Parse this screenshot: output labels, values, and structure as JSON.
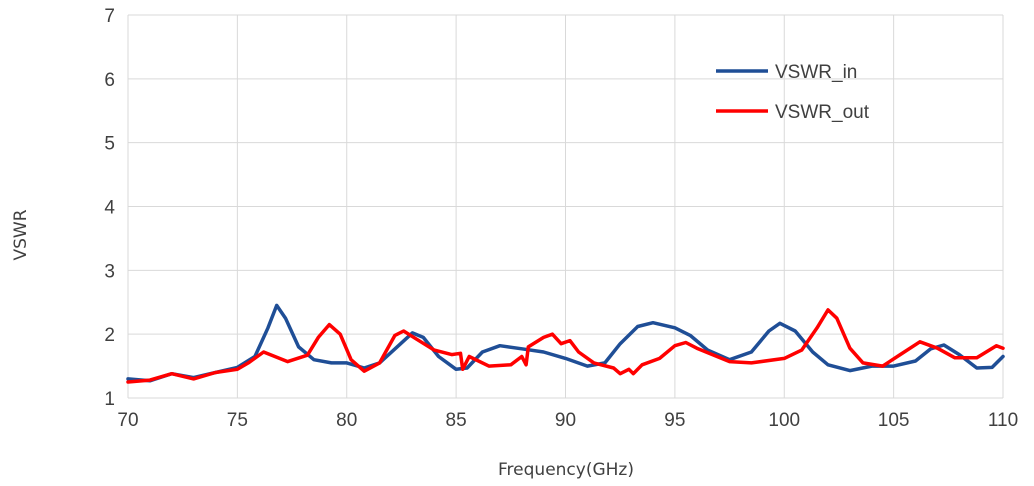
{
  "chart_data": {
    "type": "line",
    "title": "",
    "xlabel": "Frequency(GHz)",
    "ylabel": "VSWR",
    "xlim": [
      70,
      110
    ],
    "ylim": [
      1,
      7
    ],
    "x_ticks": [
      "70",
      "75",
      "80",
      "85",
      "90",
      "95",
      "100",
      "105",
      "110"
    ],
    "y_ticks": [
      "1",
      "2",
      "3",
      "4",
      "5",
      "6",
      "7"
    ],
    "grid": true,
    "legend_position": "top-right",
    "series": [
      {
        "name": "VSWR_in",
        "color": "#1f4e96",
        "points": [
          [
            70,
            1.3
          ],
          [
            71,
            1.27
          ],
          [
            72,
            1.38
          ],
          [
            73,
            1.32
          ],
          [
            74,
            1.4
          ],
          [
            75,
            1.48
          ],
          [
            75.8,
            1.65
          ],
          [
            76.4,
            2.1
          ],
          [
            76.8,
            2.45
          ],
          [
            77.2,
            2.25
          ],
          [
            77.8,
            1.8
          ],
          [
            78.5,
            1.6
          ],
          [
            79.3,
            1.55
          ],
          [
            80,
            1.55
          ],
          [
            80.8,
            1.47
          ],
          [
            81.5,
            1.55
          ],
          [
            82.3,
            1.8
          ],
          [
            83,
            2.02
          ],
          [
            83.5,
            1.95
          ],
          [
            84.2,
            1.65
          ],
          [
            85,
            1.45
          ],
          [
            85.5,
            1.47
          ],
          [
            86.2,
            1.72
          ],
          [
            87,
            1.82
          ],
          [
            88,
            1.77
          ],
          [
            89,
            1.72
          ],
          [
            90,
            1.62
          ],
          [
            91,
            1.5
          ],
          [
            91.8,
            1.55
          ],
          [
            92.5,
            1.85
          ],
          [
            93.3,
            2.12
          ],
          [
            94,
            2.18
          ],
          [
            95,
            2.1
          ],
          [
            95.7,
            1.98
          ],
          [
            96.5,
            1.75
          ],
          [
            97.5,
            1.6
          ],
          [
            98.5,
            1.72
          ],
          [
            99.3,
            2.05
          ],
          [
            99.8,
            2.17
          ],
          [
            100.5,
            2.05
          ],
          [
            101.3,
            1.72
          ],
          [
            102,
            1.52
          ],
          [
            103,
            1.43
          ],
          [
            104,
            1.5
          ],
          [
            105,
            1.5
          ],
          [
            106,
            1.58
          ],
          [
            106.7,
            1.77
          ],
          [
            107.3,
            1.83
          ],
          [
            108,
            1.68
          ],
          [
            108.8,
            1.47
          ],
          [
            109.5,
            1.48
          ],
          [
            110,
            1.65
          ]
        ]
      },
      {
        "name": "VSWR_out",
        "color": "#ff0000",
        "points": [
          [
            70,
            1.25
          ],
          [
            71,
            1.28
          ],
          [
            72,
            1.38
          ],
          [
            73,
            1.3
          ],
          [
            74,
            1.4
          ],
          [
            75,
            1.45
          ],
          [
            75.5,
            1.55
          ],
          [
            76.2,
            1.72
          ],
          [
            77.3,
            1.57
          ],
          [
            78.2,
            1.67
          ],
          [
            78.7,
            1.95
          ],
          [
            79.2,
            2.15
          ],
          [
            79.7,
            2.0
          ],
          [
            80.2,
            1.6
          ],
          [
            80.8,
            1.42
          ],
          [
            81.5,
            1.55
          ],
          [
            82.2,
            1.98
          ],
          [
            82.6,
            2.05
          ],
          [
            83.2,
            1.92
          ],
          [
            84,
            1.75
          ],
          [
            84.8,
            1.68
          ],
          [
            85.2,
            1.7
          ],
          [
            85.3,
            1.45
          ],
          [
            85.6,
            1.65
          ],
          [
            86.5,
            1.5
          ],
          [
            87.5,
            1.52
          ],
          [
            88,
            1.65
          ],
          [
            88.2,
            1.52
          ],
          [
            88.3,
            1.8
          ],
          [
            89,
            1.95
          ],
          [
            89.4,
            2.0
          ],
          [
            89.8,
            1.85
          ],
          [
            90.2,
            1.9
          ],
          [
            90.6,
            1.72
          ],
          [
            91.3,
            1.55
          ],
          [
            92.2,
            1.47
          ],
          [
            92.5,
            1.38
          ],
          [
            92.9,
            1.45
          ],
          [
            93.1,
            1.38
          ],
          [
            93.5,
            1.52
          ],
          [
            94.3,
            1.62
          ],
          [
            95,
            1.82
          ],
          [
            95.5,
            1.87
          ],
          [
            96,
            1.78
          ],
          [
            97.5,
            1.57
          ],
          [
            98.5,
            1.55
          ],
          [
            100,
            1.62
          ],
          [
            100.8,
            1.75
          ],
          [
            101.5,
            2.1
          ],
          [
            102,
            2.38
          ],
          [
            102.4,
            2.25
          ],
          [
            103,
            1.78
          ],
          [
            103.6,
            1.55
          ],
          [
            104.5,
            1.5
          ],
          [
            105.3,
            1.68
          ],
          [
            106.2,
            1.88
          ],
          [
            107,
            1.78
          ],
          [
            107.8,
            1.63
          ],
          [
            108.8,
            1.63
          ],
          [
            109.7,
            1.82
          ],
          [
            110,
            1.78
          ]
        ]
      }
    ]
  }
}
